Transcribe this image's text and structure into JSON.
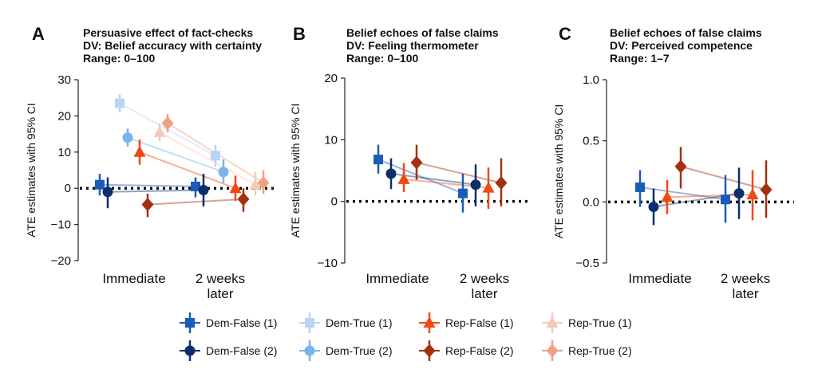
{
  "chart_data": {
    "type": "scatter",
    "categories": [
      "Immediate",
      "2 weeks later"
    ],
    "ylabel": "ATE estimates with 95% CI",
    "series_styles": [
      {
        "name": "Dem-False (1)",
        "color": "#1a5cb8",
        "marker": "square"
      },
      {
        "name": "Dem-True (1)",
        "color": "#b9d5f2",
        "marker": "square"
      },
      {
        "name": "Rep-False (1)",
        "color": "#f04a14",
        "marker": "triangle"
      },
      {
        "name": "Rep-True (1)",
        "color": "#f6cab5",
        "marker": "triangle"
      },
      {
        "name": "Dem-False (2)",
        "color": "#0e2f6b",
        "marker": "circle"
      },
      {
        "name": "Dem-True (2)",
        "color": "#7ab3ec",
        "marker": "circle"
      },
      {
        "name": "Rep-False (2)",
        "color": "#a3300e",
        "marker": "diamond"
      },
      {
        "name": "Rep-True (2)",
        "color": "#eea187",
        "marker": "diamond"
      }
    ],
    "panels": [
      {
        "letter": "A",
        "title_lines": [
          "Persuasive effect of fact-checks",
          "DV: Belief accuracy with certainty",
          "Range: 0–100"
        ],
        "ylim": [
          -20,
          30
        ],
        "yticks": [
          -20,
          -10,
          0,
          10,
          20,
          30
        ],
        "tick_labels": [
          "−20",
          "−10",
          "0",
          "10",
          "20",
          "30"
        ],
        "series": [
          {
            "name": "Dem-False (1)",
            "values": [
              [
                1,
                -2,
                4
              ],
              [
                0.5,
                -2.5,
                3
              ]
            ]
          },
          {
            "name": "Dem-False (2)",
            "values": [
              [
                -1,
                -5.5,
                3
              ],
              [
                -0.5,
                -5,
                4
              ]
            ]
          },
          {
            "name": "Dem-True (1)",
            "values": [
              [
                23.5,
                21,
                26
              ],
              [
                9,
                6,
                12
              ]
            ]
          },
          {
            "name": "Dem-True (2)",
            "values": [
              [
                14,
                11.5,
                16.5
              ],
              [
                4.5,
                1.5,
                8
              ]
            ]
          },
          {
            "name": "Rep-False (1)",
            "values": [
              [
                10,
                6.5,
                13.5
              ],
              [
                0,
                -3.5,
                3.5
              ]
            ]
          },
          {
            "name": "Rep-False (2)",
            "values": [
              [
                -4.5,
                -8,
                -1.5
              ],
              [
                -3,
                -6.5,
                0
              ]
            ]
          },
          {
            "name": "Rep-True (1)",
            "values": [
              [
                15.5,
                13,
                18
              ],
              [
                1,
                -2,
                4.5
              ]
            ]
          },
          {
            "name": "Rep-True (2)",
            "values": [
              [
                18,
                15.5,
                20.5
              ],
              [
                1.5,
                -1.5,
                5
              ]
            ]
          }
        ]
      },
      {
        "letter": "B",
        "title_lines": [
          "Belief echoes of false claims",
          "DV: Feeling thermometer",
          "Range: 0–100"
        ],
        "ylim": [
          -10,
          20
        ],
        "yticks": [
          -10,
          0,
          10,
          20
        ],
        "tick_labels": [
          "−10",
          "0",
          "10",
          "20"
        ],
        "series": [
          {
            "name": "Dem-False (1)",
            "values": [
              [
                6.8,
                4.5,
                9.2
              ],
              [
                1.3,
                -1.8,
                4.5
              ]
            ]
          },
          {
            "name": "Dem-False (2)",
            "values": [
              [
                4.5,
                2,
                7
              ],
              [
                2.7,
                -0.8,
                6
              ]
            ]
          },
          {
            "name": "Rep-False (1)",
            "values": [
              [
                3.6,
                1.5,
                6.2
              ],
              [
                2.2,
                -1.2,
                5.5
              ]
            ]
          },
          {
            "name": "Rep-False (2)",
            "values": [
              [
                6.3,
                3.5,
                9.2
              ],
              [
                3,
                -0.8,
                7
              ]
            ]
          }
        ]
      },
      {
        "letter": "C",
        "title_lines": [
          "Belief echoes of false claims",
          "DV: Perceived competence",
          "Range: 1–7"
        ],
        "ylim": [
          -0.5,
          1.0
        ],
        "yticks": [
          -0.5,
          0,
          0.5,
          1.0
        ],
        "tick_labels": [
          "−0.5",
          "0.0",
          "0.5",
          "1.0"
        ],
        "series": [
          {
            "name": "Dem-False (1)",
            "values": [
              [
                0.12,
                -0.04,
                0.26
              ],
              [
                0.02,
                -0.17,
                0.22
              ]
            ]
          },
          {
            "name": "Dem-False (2)",
            "values": [
              [
                -0.04,
                -0.19,
                0.11
              ],
              [
                0.07,
                -0.14,
                0.28
              ]
            ]
          },
          {
            "name": "Rep-False (1)",
            "values": [
              [
                0.04,
                -0.1,
                0.18
              ],
              [
                0.06,
                -0.15,
                0.26
              ]
            ]
          },
          {
            "name": "Rep-False (2)",
            "values": [
              [
                0.29,
                0.11,
                0.45
              ],
              [
                0.1,
                -0.13,
                0.34
              ]
            ]
          }
        ]
      }
    ],
    "legend": {
      "position": "bottom",
      "entries": [
        "Dem-False (1)",
        "Dem-True (1)",
        "Rep-False (1)",
        "Rep-True (1)",
        "Dem-False (2)",
        "Dem-True (2)",
        "Rep-False (2)",
        "Rep-True (2)"
      ]
    }
  }
}
